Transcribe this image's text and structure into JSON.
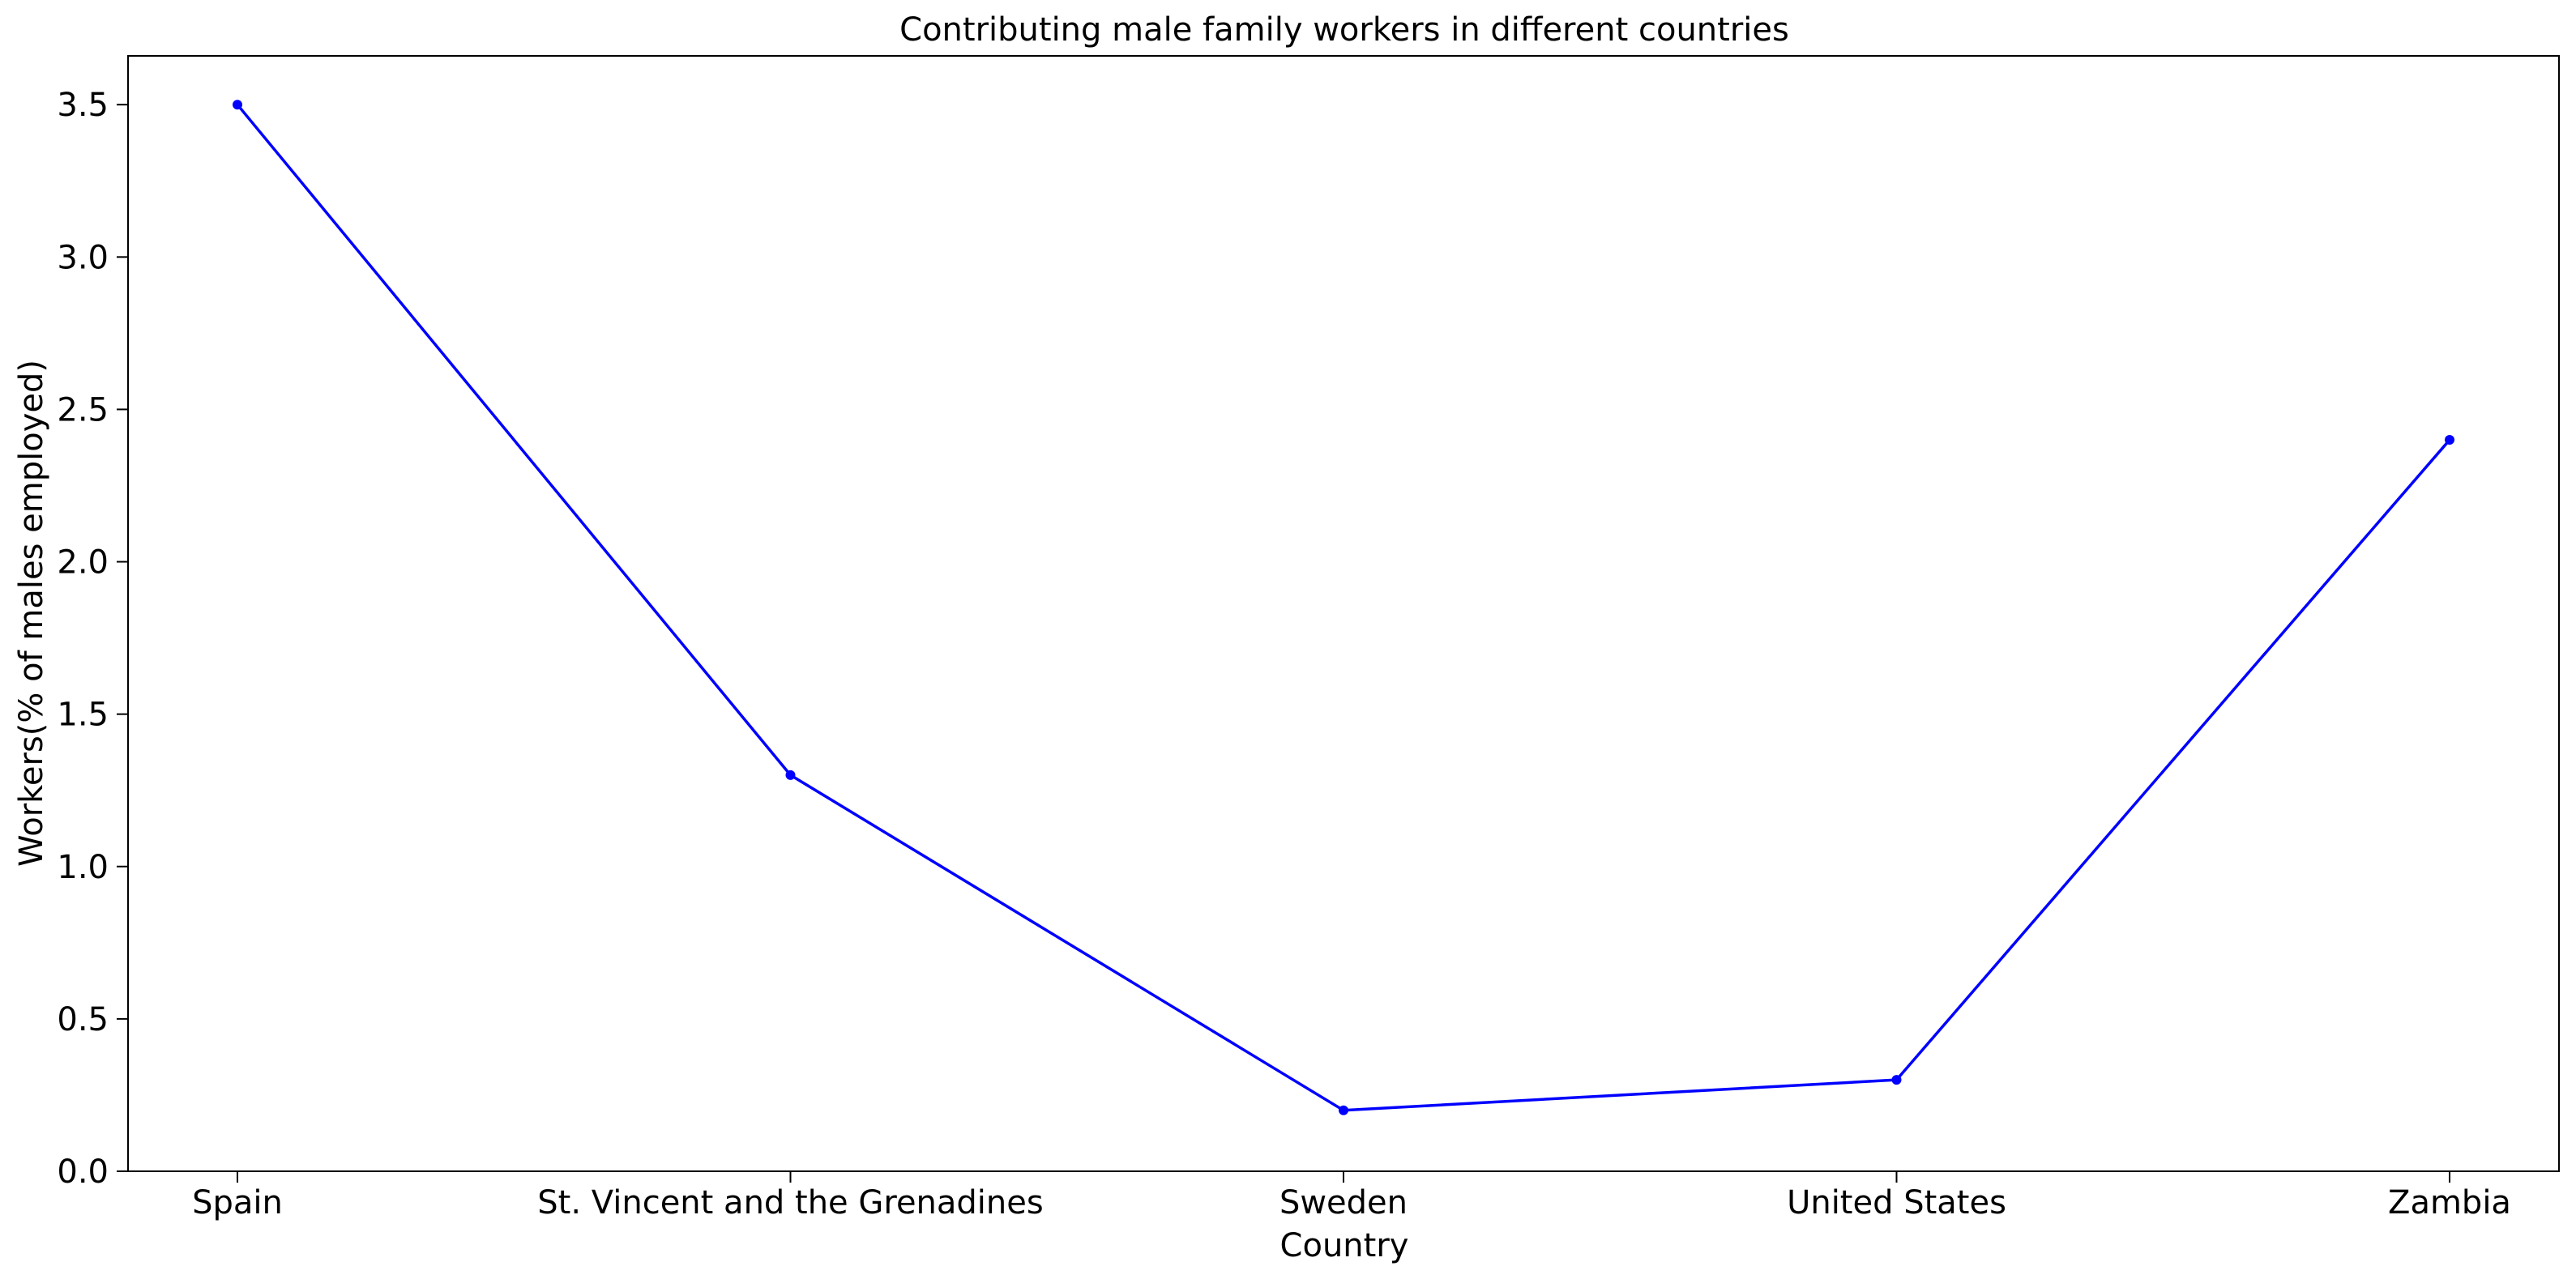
{
  "chart_data": {
    "type": "line",
    "title": "Contributing male family workers in different countries",
    "xlabel": "Country",
    "ylabel": "Workers(% of males employed)",
    "categories": [
      "Spain",
      "St. Vincent and the Grenadines",
      "Sweden",
      "United States",
      "Zambia"
    ],
    "series": [
      {
        "values": [
          3.5,
          1.3,
          0.2,
          0.3,
          2.4
        ],
        "color": "#0000ff",
        "marker": "dot"
      }
    ],
    "ylim": [
      0,
      3.66
    ],
    "yticks": [
      0.0,
      0.5,
      1.0,
      1.5,
      2.0,
      2.5,
      3.0,
      3.5
    ],
    "ytick_labels": [
      "0.0",
      "0.5",
      "1.0",
      "1.5",
      "2.0",
      "2.5",
      "3.0",
      "3.5"
    ],
    "grid": false,
    "legend": "none"
  }
}
